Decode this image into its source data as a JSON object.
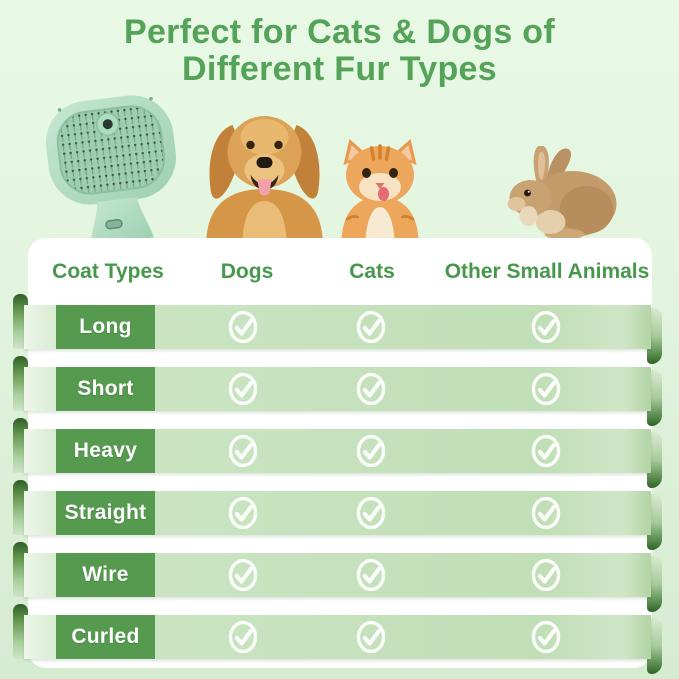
{
  "title": {
    "line1": "Perfect for Cats & Dogs of",
    "line2": "Different Fur Types"
  },
  "chart_data": {
    "type": "table",
    "title": "Perfect for Cats & Dogs of Different Fur Types",
    "columns": [
      "Coat Types",
      "Dogs",
      "Cats",
      "Other Small Animals"
    ],
    "rows": [
      {
        "coat_type": "Long",
        "dogs": true,
        "cats": true,
        "other_small_animals": true
      },
      {
        "coat_type": "Short",
        "dogs": true,
        "cats": true,
        "other_small_animals": true
      },
      {
        "coat_type": "Heavy",
        "dogs": true,
        "cats": true,
        "other_small_animals": true
      },
      {
        "coat_type": "Straight",
        "dogs": true,
        "cats": true,
        "other_small_animals": true
      },
      {
        "coat_type": "Wire",
        "dogs": true,
        "cats": true,
        "other_small_animals": true
      },
      {
        "coat_type": "Curled",
        "dogs": true,
        "cats": true,
        "other_small_animals": true
      }
    ],
    "check_symbol": "✓",
    "legend_position": "none",
    "grid": false
  },
  "images": {
    "brush": "pet-grooming-brush",
    "dog": "golden-retriever-dog",
    "cat": "orange-tabby-cat",
    "rabbit": "brown-rabbit"
  },
  "icons": {
    "check": "check-circle-icon"
  },
  "colors": {
    "title_green": "#55a259",
    "header_green": "#47984c",
    "coat_label_green": "#569a50",
    "ribbon_green": "#c6e2bd",
    "ribbon_fold_dark": "#2f5e28",
    "card_white": "#ffffff",
    "background_top": "#e8f9e5",
    "background_bottom": "#d6ecd1",
    "check_white": "#ffffff"
  }
}
